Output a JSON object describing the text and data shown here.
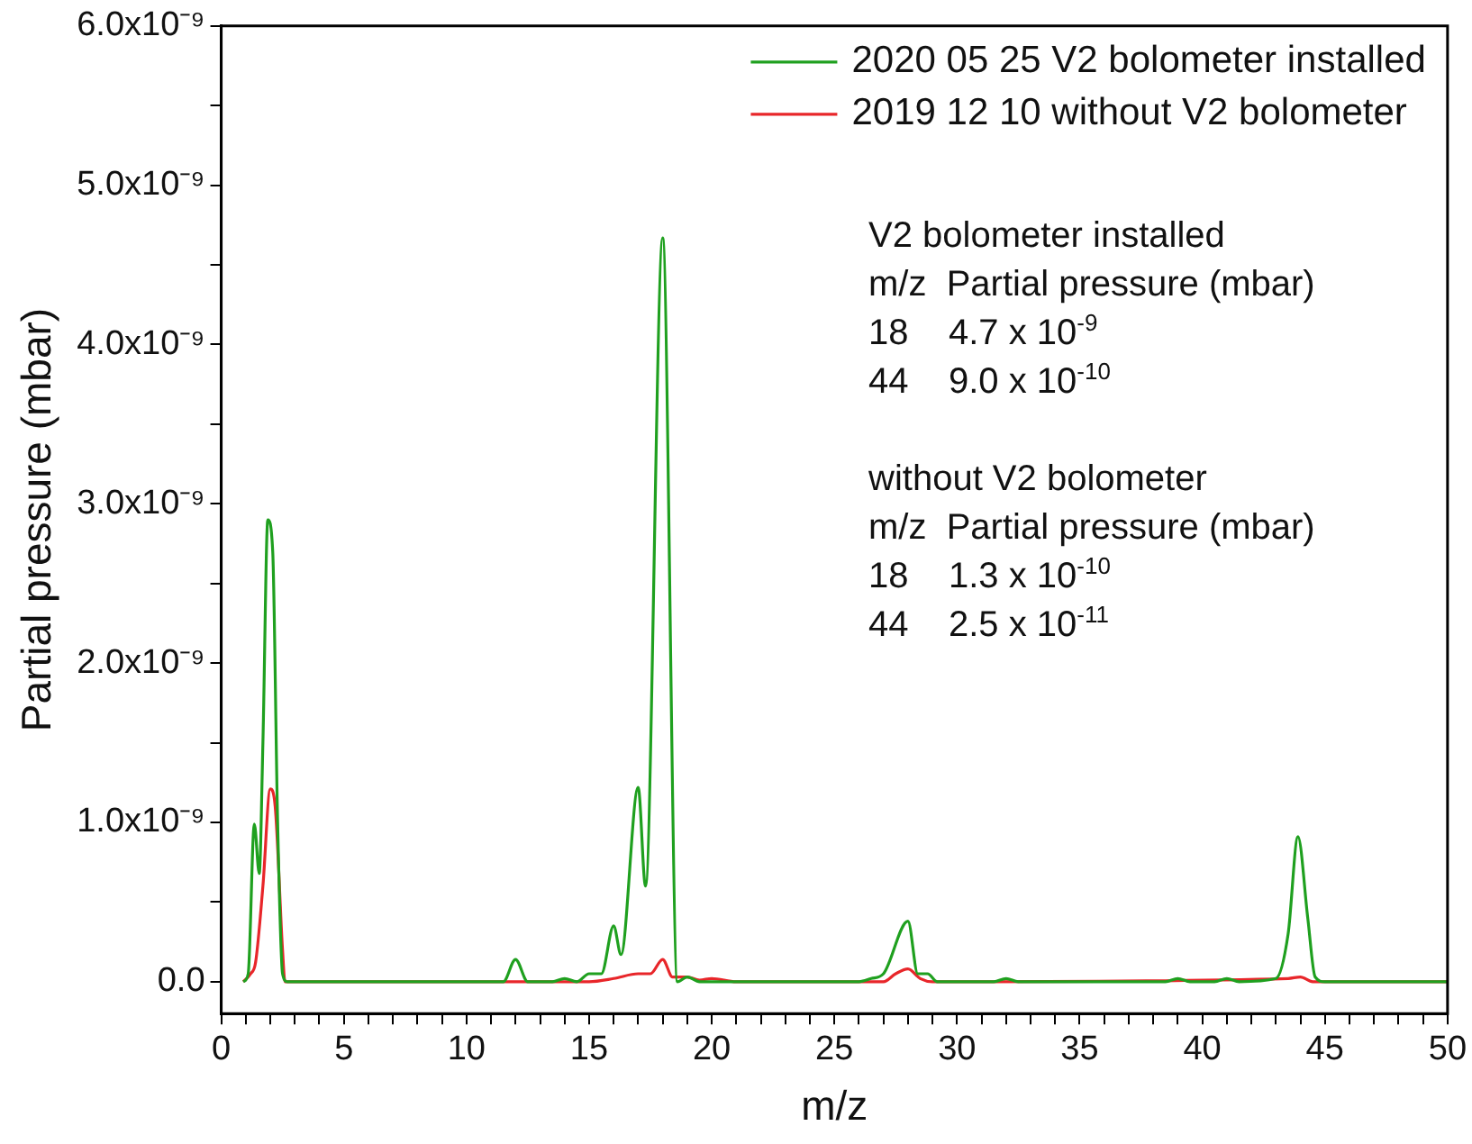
{
  "chart_data": {
    "type": "line",
    "xlabel": "m/z",
    "ylabel": "Partial pressure (mbar)",
    "xlim": [
      0,
      50
    ],
    "xticks": [
      0,
      {
        "value": 1,
        "label": null
      },
      {
        "value": 2,
        "label": null
      },
      {
        "value": 3,
        "label": null
      },
      {
        "value": 4,
        "label": null
      },
      5,
      {
        "value": 6,
        "label": null
      },
      {
        "value": 7,
        "label": null
      },
      {
        "value": 8,
        "label": null
      },
      {
        "value": 9,
        "label": null
      },
      10,
      {
        "value": 11,
        "label": null
      },
      {
        "value": 12,
        "label": null
      },
      {
        "value": 13,
        "label": null
      },
      {
        "value": 14,
        "label": null
      },
      15,
      {
        "value": 16,
        "label": null
      },
      {
        "value": 17,
        "label": null
      },
      {
        "value": 18,
        "label": null
      },
      {
        "value": 19,
        "label": null
      },
      20,
      {
        "value": 21,
        "label": null
      },
      {
        "value": 22,
        "label": null
      },
      {
        "value": 23,
        "label": null
      },
      {
        "value": 24,
        "label": null
      },
      25,
      {
        "value": 26,
        "label": null
      },
      {
        "value": 27,
        "label": null
      },
      {
        "value": 28,
        "label": null
      },
      {
        "value": 29,
        "label": null
      },
      30,
      {
        "value": 31,
        "label": null
      },
      {
        "value": 32,
        "label": null
      },
      {
        "value": 33,
        "label": null
      },
      {
        "value": 34,
        "label": null
      },
      35,
      {
        "value": 36,
        "label": null
      },
      {
        "value": 37,
        "label": null
      },
      {
        "value": 38,
        "label": null
      },
      {
        "value": 39,
        "label": null
      },
      40,
      {
        "value": 41,
        "label": null
      },
      {
        "value": 42,
        "label": null
      },
      {
        "value": 43,
        "label": null
      },
      {
        "value": 44,
        "label": null
      },
      45,
      {
        "value": 46,
        "label": null
      },
      {
        "value": 47,
        "label": null
      },
      {
        "value": 48,
        "label": null
      },
      {
        "value": 49,
        "label": null
      },
      50
    ],
    "ylim": [
      -2e-10,
      6e-09
    ],
    "yticks": [
      {
        "value": 0,
        "label": "0.0"
      },
      {
        "value": 5e-10,
        "label": null
      },
      {
        "value": 1e-09,
        "label": "1.0x10⁻⁹"
      },
      {
        "value": 1.5e-09,
        "label": null
      },
      {
        "value": 2e-09,
        "label": "2.0x10⁻⁹"
      },
      {
        "value": 2.5e-09,
        "label": null
      },
      {
        "value": 3e-09,
        "label": "3.0x10⁻⁹"
      },
      {
        "value": 3.5e-09,
        "label": null
      },
      {
        "value": 4e-09,
        "label": "4.0x10⁻⁹"
      },
      {
        "value": 4.5e-09,
        "label": null
      },
      {
        "value": 5e-09,
        "label": "5.0x10⁻⁹"
      },
      {
        "value": 5.5e-09,
        "label": null
      },
      {
        "value": 6e-09,
        "label": "6.0x10⁻⁹"
      }
    ],
    "grid": false,
    "legend": "top right",
    "marker": "none",
    "line_style": "solid",
    "series": [
      {
        "name": "2020 05 25 V2 bolometer installed",
        "color": "#1fa01f",
        "x": [
          0.9,
          1.1,
          1.35,
          1.55,
          1.7,
          1.9,
          2.1,
          2.3,
          2.5,
          2.7,
          11.5,
          12,
          12.5,
          13.5,
          14,
          14.5,
          15,
          15.5,
          16,
          16.3,
          17,
          17.3,
          18,
          18.6,
          19,
          19.5,
          26,
          26.5,
          27,
          28,
          28.4,
          28.8,
          29.2,
          31.5,
          32,
          32.5,
          38.5,
          39,
          39.5,
          40.5,
          41,
          41.5,
          43,
          43.5,
          43.9,
          44.3,
          44.6,
          45,
          50
        ],
        "values": [
          0,
          5e-11,
          9.9e-10,
          6.8e-10,
          1.5e-09,
          2.9e-09,
          2.7e-09,
          1e-09,
          5e-11,
          0,
          0,
          1.4e-10,
          0,
          0,
          2e-11,
          0,
          5e-11,
          5e-11,
          3.5e-10,
          1.7e-10,
          1.22e-09,
          6e-10,
          4.67e-09,
          0,
          3e-11,
          0,
          0,
          2e-11,
          5e-11,
          3.8e-10,
          5e-11,
          5e-11,
          0,
          0,
          2e-11,
          0,
          0,
          2e-11,
          0,
          0,
          2e-11,
          0,
          2e-11,
          3e-10,
          9.1e-10,
          4e-10,
          3e-11,
          0,
          0
        ]
      },
      {
        "name": "2019 12 10 without V2 bolometer",
        "color": "#e8262a",
        "x": [
          0.9,
          1.2,
          1.4,
          1.7,
          2.0,
          2.2,
          2.5,
          2.6,
          15,
          16,
          17,
          17.5,
          18,
          18.4,
          19,
          19.5,
          20,
          21,
          27,
          27.5,
          28,
          28.5,
          29,
          43.5,
          44,
          44.5,
          50
        ],
        "values": [
          0,
          5e-11,
          1.2e-10,
          6e-10,
          1.21e-09,
          1.1e-09,
          2e-10,
          0,
          0,
          2e-11,
          5e-11,
          5e-11,
          1.4e-10,
          3e-11,
          3e-11,
          1e-11,
          2e-11,
          0,
          0,
          5e-11,
          8e-11,
          2e-11,
          0,
          2e-11,
          3e-11,
          0,
          0
        ]
      }
    ],
    "annotations": [
      "V2 bolometer installed",
      "m/z  Partial pressure (mbar)",
      "18    4.7 x 10$^{-9}$",
      "44    9.0 x 10$^{-10}$",
      "without V2 bolometer",
      "m/z  Partial pressure (mbar)",
      "18    1.3 x 10$^{-10}$",
      "44    2.5 x 10$^{-11}$"
    ]
  }
}
